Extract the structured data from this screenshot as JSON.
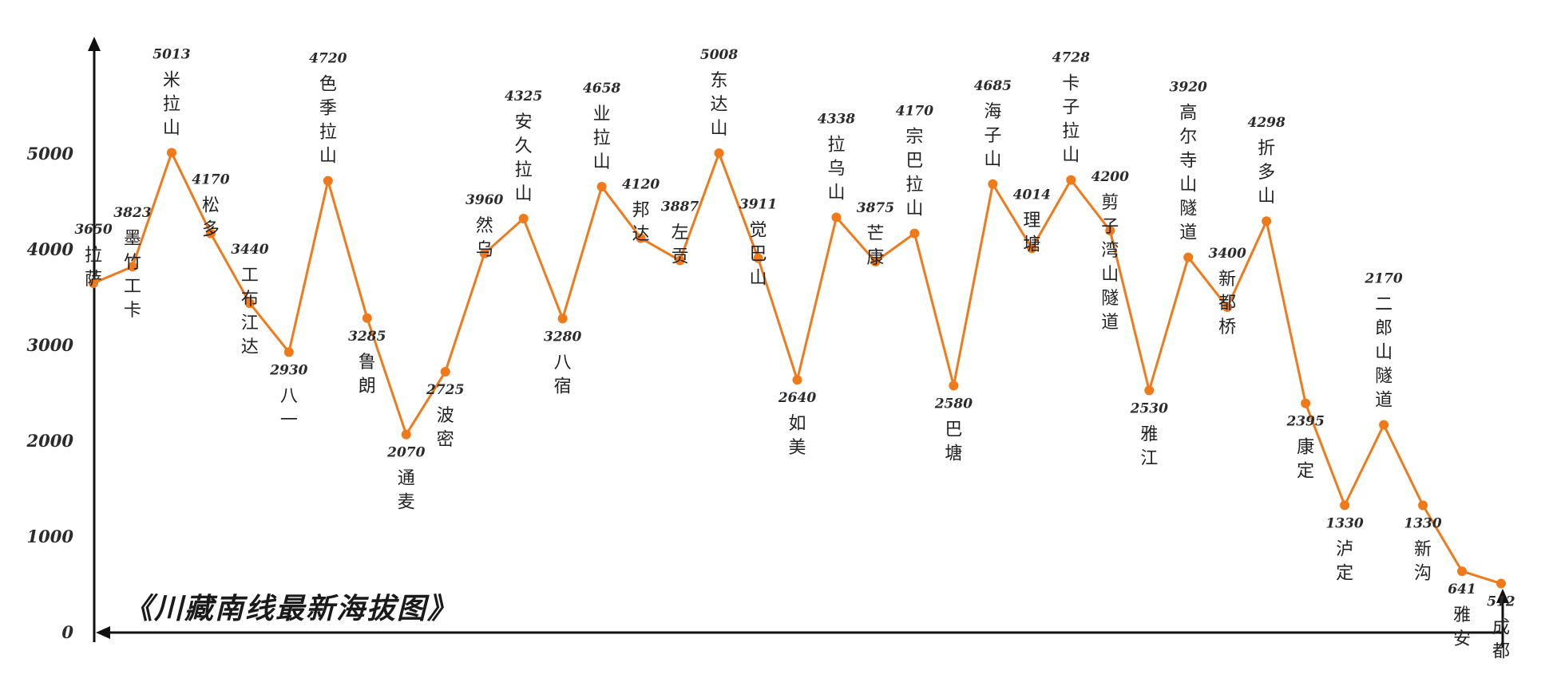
{
  "chart_data": {
    "type": "line",
    "title": "《川藏南线最新海拔图》",
    "xlabel": "",
    "ylabel": "",
    "ylim": [
      0,
      5800
    ],
    "yticks": [
      0,
      1000,
      2000,
      3000,
      4000,
      5000
    ],
    "grid": false,
    "colors": {
      "line": "#f07a1a",
      "axis": "#111111"
    },
    "points": [
      {
        "name": "拉萨",
        "elevation": 3650
      },
      {
        "name": "墨竹工卡",
        "elevation": 3823
      },
      {
        "name": "米拉山",
        "elevation": 5013
      },
      {
        "name": "松多",
        "elevation": 4170
      },
      {
        "name": "工布江达",
        "elevation": 3440
      },
      {
        "name": "八一",
        "elevation": 2930
      },
      {
        "name": "色季拉山",
        "elevation": 4720
      },
      {
        "name": "鲁朗",
        "elevation": 3285
      },
      {
        "name": "通麦",
        "elevation": 2070
      },
      {
        "name": "波密",
        "elevation": 2725
      },
      {
        "name": "然乌",
        "elevation": 3960
      },
      {
        "name": "安久拉山",
        "elevation": 4325
      },
      {
        "name": "八宿",
        "elevation": 3280
      },
      {
        "name": "业拉山",
        "elevation": 4658
      },
      {
        "name": "邦达",
        "elevation": 4120
      },
      {
        "name": "左贡",
        "elevation": 3887
      },
      {
        "name": "东达山",
        "elevation": 5008
      },
      {
        "name": "觉巴山",
        "elevation": 3911
      },
      {
        "name": "如美",
        "elevation": 2640
      },
      {
        "name": "拉乌山",
        "elevation": 4338
      },
      {
        "name": "芒康",
        "elevation": 3875
      },
      {
        "name": "宗巴拉山",
        "elevation": 4170
      },
      {
        "name": "巴塘",
        "elevation": 2580
      },
      {
        "name": "海子山",
        "elevation": 4685
      },
      {
        "name": "理塘",
        "elevation": 4014
      },
      {
        "name": "卡子拉山",
        "elevation": 4728
      },
      {
        "name": "剪子湾山隧道",
        "elevation": 4200
      },
      {
        "name": "雅江",
        "elevation": 2530
      },
      {
        "name": "高尔寺山隧道",
        "elevation": 3920
      },
      {
        "name": "新都桥",
        "elevation": 3400
      },
      {
        "name": "折多山",
        "elevation": 4298
      },
      {
        "name": "康定",
        "elevation": 2395
      },
      {
        "name": "泸定",
        "elevation": 1330
      },
      {
        "name": "二郎山隧道",
        "elevation": 2170
      },
      {
        "name": "新沟",
        "elevation": 1330
      },
      {
        "name": "雅安",
        "elevation": 641
      },
      {
        "name": "成都",
        "elevation": 512
      }
    ]
  }
}
